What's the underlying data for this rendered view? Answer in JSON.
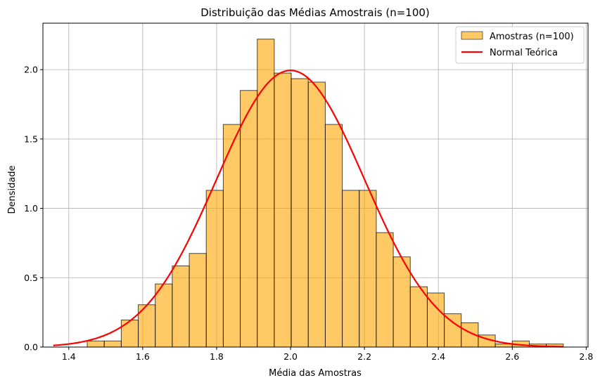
{
  "chart_data": {
    "type": "bar",
    "title": "Distribuição das Médias Amostrais (n=100)",
    "xlabel": "Média das Amostras",
    "ylabel": "Densidade",
    "xlim": [
      1.33,
      2.805
    ],
    "ylim": [
      0,
      2.335
    ],
    "grid": true,
    "x_ticks": [
      1.4,
      1.6,
      1.8,
      2.0,
      2.2,
      2.4,
      2.6,
      2.8
    ],
    "x_tick_labels": [
      "1.4",
      "1.6",
      "1.8",
      "2.0",
      "2.2",
      "2.4",
      "2.6",
      "2.8"
    ],
    "y_ticks": [
      0.0,
      0.5,
      1.0,
      1.5,
      2.0
    ],
    "y_tick_labels": [
      "0.0",
      "0.5",
      "1.0",
      "1.5",
      "2.0"
    ],
    "legend_position": "top-right",
    "series": [
      {
        "name": "Amostras (n=100)",
        "kind": "histogram",
        "color": "#FFA500",
        "opacity": 0.6,
        "edge_color": "#000000",
        "bin_edges": [
          1.45,
          1.496,
          1.542,
          1.588,
          1.634,
          1.68,
          1.726,
          1.772,
          1.818,
          1.864,
          1.91,
          1.956,
          2.002,
          2.048,
          2.094,
          2.14,
          2.186,
          2.232,
          2.278,
          2.324,
          2.37,
          2.416,
          2.462,
          2.508,
          2.554,
          2.6,
          2.646,
          2.692,
          2.738
        ],
        "values": [
          0.044,
          0.044,
          0.195,
          0.305,
          0.455,
          0.585,
          0.675,
          1.13,
          1.605,
          1.85,
          2.22,
          1.975,
          1.935,
          1.91,
          1.605,
          1.13,
          1.13,
          0.825,
          0.65,
          0.435,
          0.39,
          0.24,
          0.175,
          0.087,
          0.022,
          0.044,
          0.022,
          0.022
        ]
      },
      {
        "name": "Normal Teórica",
        "kind": "line",
        "color": "#FF0000",
        "mean": 2.0,
        "std": 0.2,
        "x_range": [
          1.358,
          2.738
        ]
      }
    ]
  }
}
